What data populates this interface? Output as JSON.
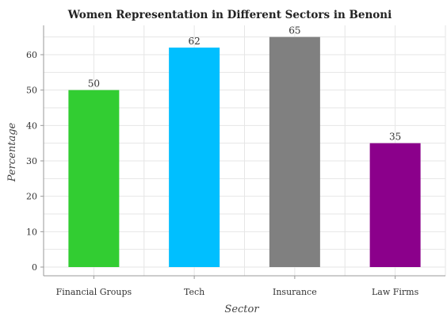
{
  "chart_data": {
    "type": "bar",
    "title": "Women Representation in Different Sectors in Benoni",
    "xlabel": "Sector",
    "ylabel": "Percentage",
    "categories": [
      "Financial Groups",
      "Tech",
      "Insurance",
      "Law Firms"
    ],
    "values": [
      50,
      62,
      65,
      35
    ],
    "value_labels": [
      "50",
      "62",
      "65",
      "35"
    ],
    "colors": [
      "#32cd32",
      "#00bfff",
      "#808080",
      "#8b008b"
    ],
    "ylim": [
      0,
      68
    ],
    "yticks": [
      0,
      10,
      20,
      30,
      40,
      50,
      60
    ],
    "ytick_labels": [
      "0",
      "10",
      "20",
      "30",
      "40",
      "50",
      "60"
    ],
    "grid": true,
    "legend": "none"
  }
}
